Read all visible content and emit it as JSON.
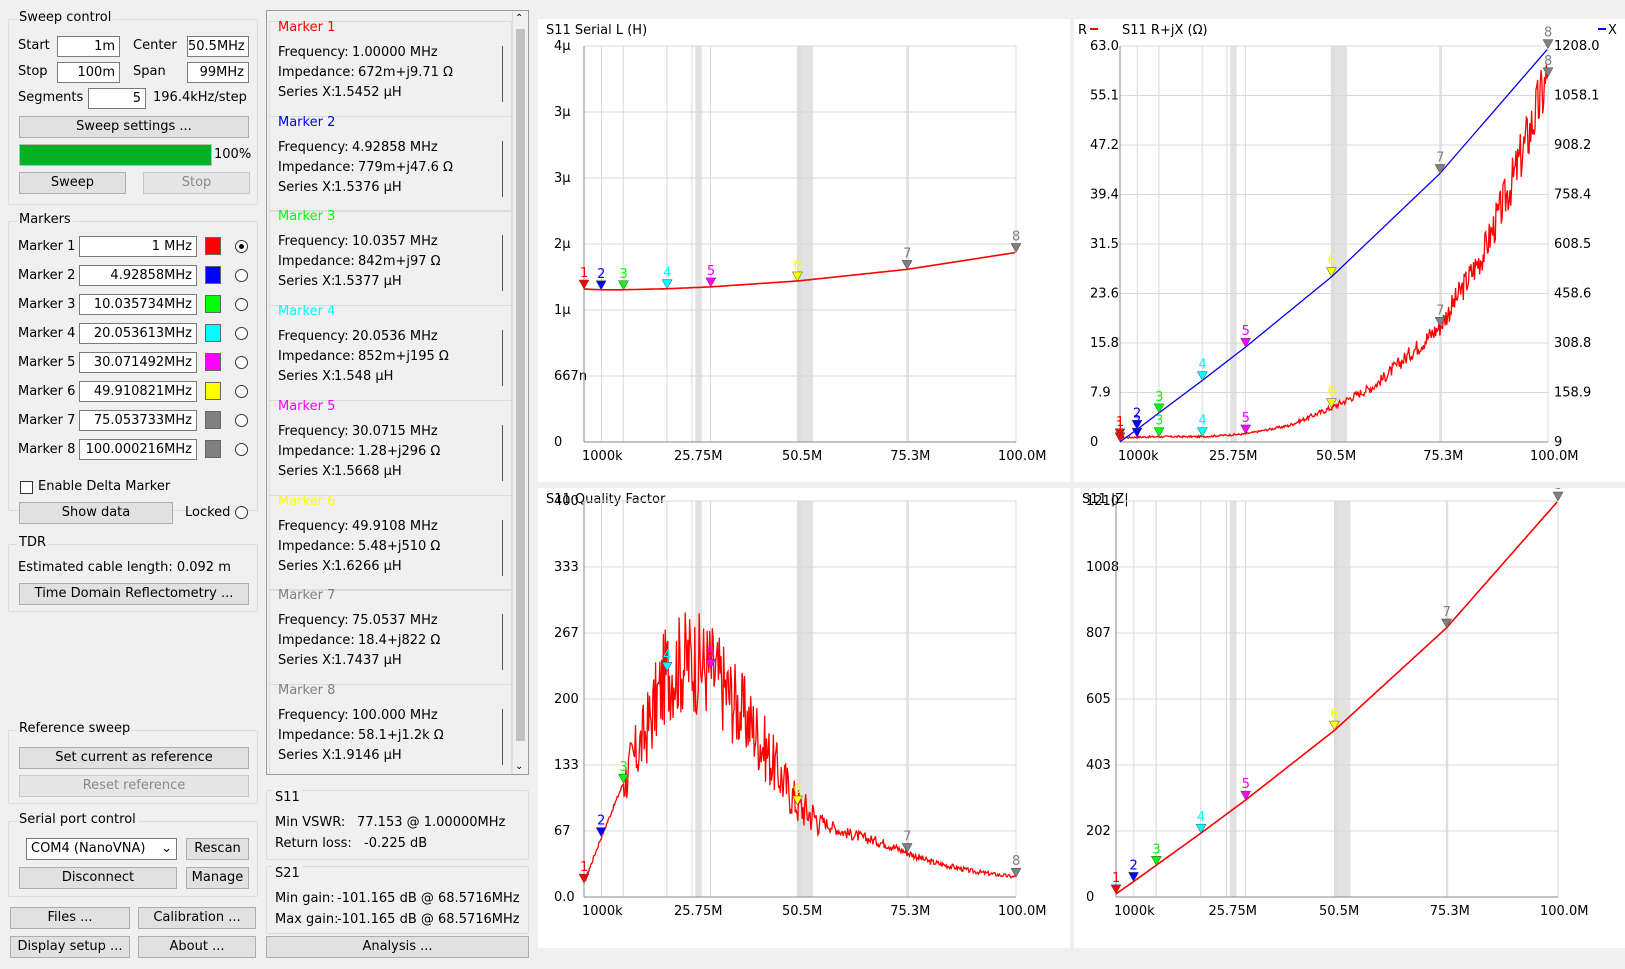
{
  "sweep": {
    "title": "Sweep control",
    "start_label": "Start",
    "start": "1m",
    "stop_label": "Stop",
    "stop": "100m",
    "center_label": "Center",
    "center": "50.5MHz",
    "span_label": "Span",
    "span": "99MHz",
    "segments_label": "Segments",
    "segments": "5",
    "step": "196.4kHz/step",
    "settings_btn": "Sweep settings ...",
    "progress": "100%",
    "progress_value": 1.0,
    "sweep_btn": "Sweep",
    "stop_btn": "Stop"
  },
  "markers_panel": {
    "title": "Markers",
    "items": [
      {
        "label": "Marker 1",
        "value": "1 MHz",
        "color": "#ff0000",
        "selected": true
      },
      {
        "label": "Marker 2",
        "value": "4.92858MHz",
        "color": "#0000ff",
        "selected": false
      },
      {
        "label": "Marker 3",
        "value": "10.035734MHz",
        "color": "#00ff00",
        "selected": false
      },
      {
        "label": "Marker 4",
        "value": "20.053613MHz",
        "color": "#00ffff",
        "selected": false
      },
      {
        "label": "Marker 5",
        "value": "30.071492MHz",
        "color": "#ff00ff",
        "selected": false
      },
      {
        "label": "Marker 6",
        "value": "49.910821MHz",
        "color": "#ffff00",
        "selected": false
      },
      {
        "label": "Marker 7",
        "value": "75.053733MHz",
        "color": "#808080",
        "selected": false
      },
      {
        "label": "Marker 8",
        "value": "100.000216MHz",
        "color": "#808080",
        "selected": false
      }
    ],
    "delta_label": "Enable Delta Marker",
    "show_data_btn": "Show data",
    "locked_label": "Locked"
  },
  "tdr": {
    "title": "TDR",
    "cable": "Estimated cable length: 0.092 m",
    "btn": "Time Domain Reflectometry ..."
  },
  "reference": {
    "title": "Reference sweep",
    "set_btn": "Set current as reference",
    "reset_btn": "Reset reference"
  },
  "serial": {
    "title": "Serial port control",
    "port": "COM4 (NanoVNA)",
    "rescan_btn": "Rescan",
    "disconnect_btn": "Disconnect",
    "manage_btn": "Manage"
  },
  "bottom_buttons": {
    "files": "Files ...",
    "calibration": "Calibration ...",
    "display": "Display setup ...",
    "about": "About ...",
    "analysis": "Analysis ..."
  },
  "marker_details": [
    {
      "title": "Marker 1",
      "color": "#ff0000",
      "freq_label": "Frequency:",
      "freq": "1.00000 MHz",
      "imp_label": "Impedance:",
      "imp": "672m+j9.71 Ω",
      "sx_label": "Series X:",
      "sx": "1.5452 µH"
    },
    {
      "title": "Marker 2",
      "color": "#0000ff",
      "freq_label": "Frequency:",
      "freq": "4.92858 MHz",
      "imp_label": "Impedance:",
      "imp": "779m+j47.6 Ω",
      "sx_label": "Series X:",
      "sx": "1.5376 µH"
    },
    {
      "title": "Marker 3",
      "color": "#00ff00",
      "freq_label": "Frequency:",
      "freq": "10.0357 MHz",
      "imp_label": "Impedance:",
      "imp": "842m+j97 Ω",
      "sx_label": "Series X:",
      "sx": "1.5377 µH"
    },
    {
      "title": "Marker 4",
      "color": "#00ffff",
      "freq_label": "Frequency:",
      "freq": "20.0536 MHz",
      "imp_label": "Impedance:",
      "imp": "852m+j195 Ω",
      "sx_label": "Series X:",
      "sx": "1.548 µH"
    },
    {
      "title": "Marker 5",
      "color": "#ff00ff",
      "freq_label": "Frequency:",
      "freq": "30.0715 MHz",
      "imp_label": "Impedance:",
      "imp": "1.28+j296 Ω",
      "sx_label": "Series X:",
      "sx": "1.5668 µH"
    },
    {
      "title": "Marker 6",
      "color": "#ffff00",
      "freq_label": "Frequency:",
      "freq": "49.9108 MHz",
      "imp_label": "Impedance:",
      "imp": "5.48+j510 Ω",
      "sx_label": "Series X:",
      "sx": "1.6266 µH"
    },
    {
      "title": "Marker 7",
      "color": "#808080",
      "freq_label": "Frequency:",
      "freq": "75.0537 MHz",
      "imp_label": "Impedance:",
      "imp": "18.4+j822 Ω",
      "sx_label": "Series X:",
      "sx": "1.7437 µH"
    },
    {
      "title": "Marker 8",
      "color": "#808080",
      "freq_label": "Frequency:",
      "freq": "100.000 MHz",
      "imp_label": "Impedance:",
      "imp": "58.1+j1.2k Ω",
      "sx_label": "Series X:",
      "sx": "1.9146 µH"
    }
  ],
  "s11": {
    "title": "S11",
    "vswr_label": "Min VSWR:",
    "vswr": "77.153 @ 1.00000MHz",
    "rl_label": "Return loss:",
    "rl": "-0.225 dB"
  },
  "s21": {
    "title": "S21",
    "min_label": "Min gain:",
    "min": "-101.165 dB @ 68.5716MHz",
    "max_label": "Max gain:",
    "max": "-101.165 dB @ 68.5716MHz"
  },
  "chart_data": [
    {
      "type": "line",
      "title": "S11 Serial L (H)",
      "x_ticks": [
        "1000k",
        "25.75M",
        "50.5M",
        "75.3M",
        "100.0M"
      ],
      "y_ticks": [
        "0",
        "667n",
        "1µ",
        "2µ",
        "3µ",
        "3µ",
        "4µ"
      ],
      "xlim": [
        1,
        100
      ],
      "ylim": [
        0,
        4
      ],
      "x_unit": "MHz",
      "y_unit": "µH",
      "series": [
        {
          "color": "#ff0000",
          "x": [
            1,
            5,
            10,
            20,
            30,
            50,
            75,
            100
          ],
          "y": [
            1.5452,
            1.5376,
            1.5377,
            1.548,
            1.5668,
            1.6266,
            1.7437,
            1.9146
          ]
        }
      ],
      "markers": [
        {
          "n": "1",
          "x": 1,
          "y": 1.5452,
          "color": "#ff0000"
        },
        {
          "n": "2",
          "x": 4.93,
          "y": 1.5376,
          "color": "#0000ff"
        },
        {
          "n": "3",
          "x": 10.04,
          "y": 1.5377,
          "color": "#00ff00"
        },
        {
          "n": "4",
          "x": 20.05,
          "y": 1.548,
          "color": "#00ffff"
        },
        {
          "n": "5",
          "x": 30.07,
          "y": 1.5668,
          "color": "#ff00ff"
        },
        {
          "n": "6",
          "x": 49.91,
          "y": 1.6266,
          "color": "#ffff00"
        },
        {
          "n": "7",
          "x": 75.05,
          "y": 1.7437,
          "color": "#808080"
        },
        {
          "n": "8",
          "x": 100,
          "y": 1.9146,
          "color": "#808080"
        }
      ]
    },
    {
      "type": "line",
      "title": "S11 R+jX (Ω)",
      "legend_r": "R",
      "legend_x": "X",
      "x_ticks": [
        "1000k",
        "25.75M",
        "50.5M",
        "75.3M",
        "100.0M"
      ],
      "y_left_ticks": [
        "0",
        "7.9",
        "15.8",
        "23.6",
        "31.5",
        "39.4",
        "47.2",
        "55.1",
        "63.0"
      ],
      "y_right_ticks": [
        "9",
        "158.9",
        "308.8",
        "458.6",
        "608.5",
        "758.4",
        "908.2",
        "1058.1",
        "1208.0"
      ],
      "xlim": [
        1,
        100
      ],
      "ylim_r": [
        0,
        63
      ],
      "ylim_x": [
        9,
        1208
      ],
      "series": [
        {
          "name": "R",
          "color": "#ff0000",
          "x": [
            1,
            5,
            10,
            20,
            30,
            40,
            50,
            60,
            75,
            85,
            92,
            100
          ],
          "y": [
            0.672,
            0.779,
            0.842,
            0.852,
            1.28,
            2.6,
            5.48,
            9.0,
            18.4,
            30,
            42,
            58.1
          ]
        },
        {
          "name": "X",
          "color": "#0000ff",
          "x": [
            1,
            5,
            10,
            20,
            30,
            50,
            75,
            100
          ],
          "y": [
            9.71,
            47.6,
            97,
            195,
            296,
            510,
            822,
            1200
          ]
        }
      ],
      "markers_r": [
        {
          "n": "1",
          "x": 1,
          "y": 0.672,
          "color": "#ff0000"
        },
        {
          "n": "2",
          "x": 4.93,
          "y": 0.779,
          "color": "#0000ff"
        },
        {
          "n": "3",
          "x": 10.04,
          "y": 0.842,
          "color": "#00ff00"
        },
        {
          "n": "4",
          "x": 20.05,
          "y": 0.852,
          "color": "#00ffff"
        },
        {
          "n": "5",
          "x": 30.07,
          "y": 1.28,
          "color": "#ff00ff"
        },
        {
          "n": "6",
          "x": 49.91,
          "y": 5.48,
          "color": "#ffff00"
        },
        {
          "n": "7",
          "x": 75.05,
          "y": 18.4,
          "color": "#808080"
        },
        {
          "n": "8",
          "x": 100,
          "y": 58.1,
          "color": "#808080"
        }
      ],
      "markers_x": [
        {
          "n": "1",
          "x": 1,
          "y": 9.71,
          "color": "#ff0000"
        },
        {
          "n": "2",
          "x": 4.93,
          "y": 47.6,
          "color": "#0000ff"
        },
        {
          "n": "3",
          "x": 10.04,
          "y": 97,
          "color": "#00ff00"
        },
        {
          "n": "4",
          "x": 20.05,
          "y": 195,
          "color": "#00ffff"
        },
        {
          "n": "5",
          "x": 30.07,
          "y": 296,
          "color": "#ff00ff"
        },
        {
          "n": "6",
          "x": 49.91,
          "y": 510,
          "color": "#ffff00"
        },
        {
          "n": "7",
          "x": 75.05,
          "y": 822,
          "color": "#808080"
        },
        {
          "n": "8",
          "x": 100,
          "y": 1200,
          "color": "#808080"
        }
      ]
    },
    {
      "type": "line",
      "title": "S11 Quality Factor",
      "x_ticks": [
        "1000k",
        "25.75M",
        "50.5M",
        "75.3M",
        "100.0M"
      ],
      "y_ticks": [
        "0.0",
        "67",
        "133",
        "200",
        "267",
        "333",
        "400"
      ],
      "xlim": [
        1,
        100
      ],
      "ylim": [
        0,
        400
      ],
      "series": [
        {
          "color": "#ff0000",
          "x": [
            1,
            5,
            10,
            15,
            20,
            25,
            30,
            35,
            40,
            45,
            50,
            55,
            60,
            70,
            75,
            80,
            90,
            100
          ],
          "y": [
            14,
            61,
            115,
            165,
            228,
            240,
            231,
            200,
            170,
            130,
            93,
            78,
            66,
            54,
            45,
            36,
            26,
            20
          ]
        }
      ],
      "markers": [
        {
          "n": "1",
          "x": 1,
          "y": 14,
          "color": "#ff0000"
        },
        {
          "n": "2",
          "x": 4.93,
          "y": 61,
          "color": "#0000ff"
        },
        {
          "n": "3",
          "x": 10.04,
          "y": 115,
          "color": "#00ff00"
        },
        {
          "n": "4",
          "x": 20.05,
          "y": 228,
          "color": "#00ffff"
        },
        {
          "n": "5",
          "x": 30.07,
          "y": 231,
          "color": "#ff00ff"
        },
        {
          "n": "6",
          "x": 49.91,
          "y": 93,
          "color": "#ffff00"
        },
        {
          "n": "7",
          "x": 75.05,
          "y": 45,
          "color": "#808080"
        },
        {
          "n": "8",
          "x": 100,
          "y": 20,
          "color": "#808080"
        }
      ]
    },
    {
      "type": "line",
      "title": "S11 |Z|",
      "x_ticks": [
        "1000k",
        "25.75M",
        "50.5M",
        "75.3M",
        "100.0M"
      ],
      "y_ticks": [
        "0",
        "202",
        "403",
        "605",
        "807",
        "1008",
        "1210"
      ],
      "xlim": [
        1,
        100
      ],
      "ylim": [
        0,
        1210
      ],
      "series": [
        {
          "color": "#ff0000",
          "x": [
            1,
            5,
            10,
            20,
            30,
            50,
            75,
            100
          ],
          "y": [
            9.7,
            47.6,
            97,
            195,
            296,
            510,
            822,
            1210
          ]
        }
      ],
      "markers": [
        {
          "n": "1",
          "x": 1,
          "y": 9.7,
          "color": "#ff0000"
        },
        {
          "n": "2",
          "x": 4.93,
          "y": 47.6,
          "color": "#0000ff"
        },
        {
          "n": "3",
          "x": 10.04,
          "y": 97,
          "color": "#00ff00"
        },
        {
          "n": "4",
          "x": 20.05,
          "y": 195,
          "color": "#00ffff"
        },
        {
          "n": "5",
          "x": 30.07,
          "y": 296,
          "color": "#ff00ff"
        },
        {
          "n": "6",
          "x": 49.91,
          "y": 510,
          "color": "#ffff00"
        },
        {
          "n": "7",
          "x": 75.05,
          "y": 822,
          "color": "#808080"
        },
        {
          "n": "8",
          "x": 100,
          "y": 1210,
          "color": "#808080"
        }
      ]
    }
  ]
}
